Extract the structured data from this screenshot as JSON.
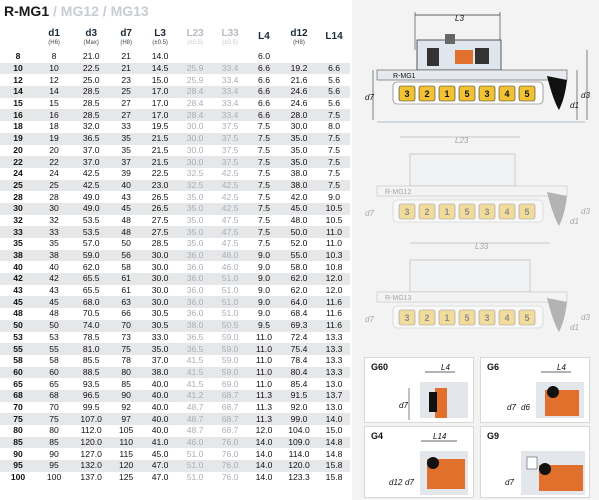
{
  "title": {
    "main": "R-MG1",
    "sep1": " / ",
    "alt1": "MG12",
    "sep2": " / ",
    "alt2": "MG13"
  },
  "table": {
    "headers": [
      {
        "label": "",
        "unit": "",
        "gray": false
      },
      {
        "label": "d1",
        "unit": "(H6)",
        "gray": false
      },
      {
        "label": "d3",
        "unit": "(Max)",
        "gray": false
      },
      {
        "label": "d7",
        "unit": "(H8)",
        "gray": false
      },
      {
        "label": "L3",
        "unit": "(±0.5)",
        "gray": false
      },
      {
        "label": "L23",
        "unit": "(±0.5)",
        "gray": true
      },
      {
        "label": "L33",
        "unit": "(±0.5)",
        "gray": true
      },
      {
        "label": "L4",
        "unit": "",
        "gray": false
      },
      {
        "label": "d12",
        "unit": "(H8)",
        "gray": false
      },
      {
        "label": "L14",
        "unit": "",
        "gray": false
      }
    ],
    "rows": [
      [
        "8",
        "8",
        "21.0",
        "21",
        "14.0",
        "",
        "",
        "6.0",
        "",
        ""
      ],
      [
        "10",
        "10",
        "22.5",
        "21",
        "14.5",
        "25.9",
        "33.4",
        "6.6",
        "19.2",
        "6.6"
      ],
      [
        "12",
        "12",
        "25.0",
        "23",
        "15.0",
        "25.9",
        "33.4",
        "6.6",
        "21.6",
        "5.6"
      ],
      [
        "14",
        "14",
        "28.5",
        "25",
        "17.0",
        "28.4",
        "33.4",
        "6.6",
        "24.6",
        "5.6"
      ],
      [
        "15",
        "15",
        "28.5",
        "27",
        "17.0",
        "28.4",
        "33.4",
        "6.6",
        "24.6",
        "5.6"
      ],
      [
        "16",
        "16",
        "28.5",
        "27",
        "17.0",
        "28.4",
        "33.4",
        "6.6",
        "28.0",
        "7.5"
      ],
      [
        "18",
        "18",
        "32.0",
        "33",
        "19.5",
        "30.0",
        "37.5",
        "7.5",
        "30.0",
        "8.0"
      ],
      [
        "19",
        "19",
        "36.5",
        "35",
        "21.5",
        "30.0",
        "37.5",
        "7.5",
        "35.0",
        "7.5"
      ],
      [
        "20",
        "20",
        "37.0",
        "35",
        "21.5",
        "30.0",
        "37.5",
        "7.5",
        "35.0",
        "7.5"
      ],
      [
        "22",
        "22",
        "37.0",
        "37",
        "21.5",
        "30.0",
        "37.5",
        "7.5",
        "35.0",
        "7.5"
      ],
      [
        "24",
        "24",
        "42.5",
        "39",
        "22.5",
        "32.5",
        "42.5",
        "7.5",
        "38.0",
        "7.5"
      ],
      [
        "25",
        "25",
        "42.5",
        "40",
        "23.0",
        "32.5",
        "42.5",
        "7.5",
        "38.0",
        "7.5"
      ],
      [
        "28",
        "28",
        "49.0",
        "43",
        "26.5",
        "35.0",
        "42.5",
        "7.5",
        "42.0",
        "9.0"
      ],
      [
        "30",
        "30",
        "49.0",
        "45",
        "26.5",
        "35.0",
        "42.5",
        "7.5",
        "45.0",
        "10.5"
      ],
      [
        "32",
        "32",
        "53.5",
        "48",
        "27.5",
        "35.0",
        "47.5",
        "7.5",
        "48.0",
        "10.5"
      ],
      [
        "33",
        "33",
        "53.5",
        "48",
        "27.5",
        "35.0",
        "47.5",
        "7.5",
        "50.0",
        "11.0"
      ],
      [
        "35",
        "35",
        "57.0",
        "50",
        "28.5",
        "35.0",
        "47.5",
        "7.5",
        "52.0",
        "11.0"
      ],
      [
        "38",
        "38",
        "59.0",
        "56",
        "30.0",
        "36.0",
        "46.0",
        "9.0",
        "55.0",
        "10.3"
      ],
      [
        "40",
        "40",
        "62.0",
        "58",
        "30.0",
        "36.0",
        "46.0",
        "9.0",
        "58.0",
        "10.8"
      ],
      [
        "42",
        "42",
        "65.5",
        "61",
        "30.0",
        "36.0",
        "51.0",
        "9.0",
        "62.0",
        "12.0"
      ],
      [
        "43",
        "43",
        "65.5",
        "61",
        "30.0",
        "36.0",
        "51.0",
        "9.0",
        "62.0",
        "12.0"
      ],
      [
        "45",
        "45",
        "68.0",
        "63",
        "30.0",
        "36.0",
        "51.0",
        "9.0",
        "64.0",
        "11.6"
      ],
      [
        "48",
        "48",
        "70.5",
        "66",
        "30.5",
        "36.0",
        "51.0",
        "9.0",
        "68.4",
        "11.6"
      ],
      [
        "50",
        "50",
        "74.0",
        "70",
        "30.5",
        "38.0",
        "50.5",
        "9.5",
        "69.3",
        "11.6"
      ],
      [
        "53",
        "53",
        "78.5",
        "73",
        "33.0",
        "36.5",
        "59.0",
        "11.0",
        "72.4",
        "13.3"
      ],
      [
        "55",
        "55",
        "81.0",
        "75",
        "35.0",
        "36.5",
        "59.0",
        "11.0",
        "75.4",
        "13.3"
      ],
      [
        "58",
        "58",
        "85.5",
        "78",
        "37.0",
        "41.5",
        "59.0",
        "11.0",
        "78.4",
        "13.3"
      ],
      [
        "60",
        "60",
        "88.5",
        "80",
        "38.0",
        "41.5",
        "59.0",
        "11.0",
        "80.4",
        "13.3"
      ],
      [
        "65",
        "65",
        "93.5",
        "85",
        "40.0",
        "41.5",
        "69.0",
        "11.0",
        "85.4",
        "13.0"
      ],
      [
        "68",
        "68",
        "96.5",
        "90",
        "40.0",
        "41.2",
        "68.7",
        "11.3",
        "91.5",
        "13.7"
      ],
      [
        "70",
        "70",
        "99.5",
        "92",
        "40.0",
        "48.7",
        "68.7",
        "11.3",
        "92.0",
        "13.0"
      ],
      [
        "75",
        "75",
        "107.0",
        "97",
        "40.0",
        "48.7",
        "68.7",
        "11.3",
        "99.0",
        "14.0"
      ],
      [
        "80",
        "80",
        "112.0",
        "105",
        "40.0",
        "48.7",
        "68.7",
        "12.0",
        "104.0",
        "15.0"
      ],
      [
        "85",
        "85",
        "120.0",
        "110",
        "41.0",
        "46.0",
        "76.0",
        "14.0",
        "109.0",
        "14.8"
      ],
      [
        "90",
        "90",
        "127.0",
        "115",
        "45.0",
        "51.0",
        "76.0",
        "14.0",
        "114.0",
        "14.8"
      ],
      [
        "95",
        "95",
        "132.0",
        "120",
        "47.0",
        "51.0",
        "76.0",
        "14.0",
        "120.0",
        "15.8"
      ],
      [
        "100",
        "100",
        "137.0",
        "125",
        "47.0",
        "51.0",
        "76.0",
        "14.0",
        "123.3",
        "15.8"
      ]
    ]
  },
  "diagrams": {
    "d1": {
      "name": "R-MG1",
      "dim_top": "L3",
      "dim_left": "d7",
      "dim_r1": "d1",
      "dim_r2": "d3",
      "parts": [
        "3",
        "2",
        "1",
        "5",
        "3",
        "4",
        "5"
      ]
    },
    "d2": {
      "name": "R-MG12",
      "dim_top": "L23",
      "dim_left": "d7",
      "dim_r1": "d1",
      "dim_r2": "d3",
      "parts": [
        "3",
        "2",
        "1",
        "5",
        "3",
        "4",
        "5"
      ]
    },
    "d3": {
      "name": "R-MG13",
      "dim_top": "L33",
      "dim_left": "d7",
      "dim_r1": "d1",
      "dim_r2": "d3",
      "parts": [
        "3",
        "2",
        "1",
        "5",
        "3",
        "4",
        "5"
      ]
    }
  },
  "seats": [
    {
      "name": "G60",
      "dim_top": "L4",
      "dim_left": "d7"
    },
    {
      "name": "G6",
      "dim_top": "L4",
      "dim_left": "d7",
      "dim_left2": "d6"
    },
    {
      "name": "G4",
      "dim_top": "L14",
      "dim_left": "d12",
      "dim_left2": "d7"
    },
    {
      "name": "G9",
      "dim_top": "",
      "dim_left": "d7"
    }
  ],
  "colors": {
    "accent_orange": "#e0702c",
    "gold": "#f2c233",
    "gray_text": "#a9afb7"
  }
}
